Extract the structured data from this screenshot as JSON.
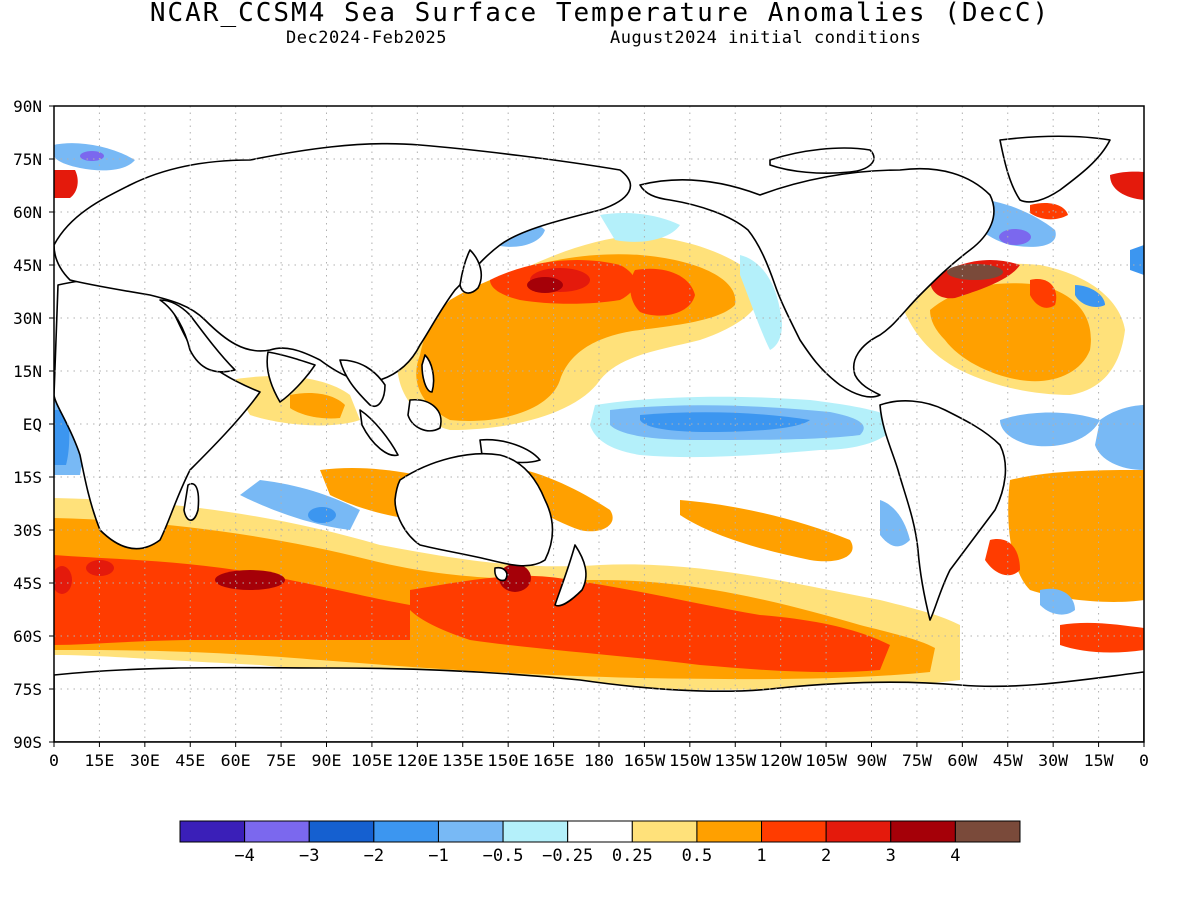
{
  "header": {
    "title": "NCAR_CCSM4 Sea Surface Temperature Anomalies (DecC)",
    "period": "Dec2024-Feb2025",
    "init": "August2024 initial conditions"
  },
  "map_data": {
    "variable": "Sea Surface Temperature Anomalies",
    "units": "°C",
    "lat_ticks": [
      "90N",
      "75N",
      "60N",
      "45N",
      "30N",
      "15N",
      "EQ",
      "15S",
      "30S",
      "45S",
      "60S",
      "75S",
      "90S"
    ],
    "lon_ticks": [
      "0",
      "15E",
      "30E",
      "45E",
      "60E",
      "75E",
      "90E",
      "105E",
      "120E",
      "135E",
      "150E",
      "165E",
      "180",
      "165W",
      "150W",
      "135W",
      "120W",
      "105W",
      "90W",
      "75W",
      "60W",
      "45W",
      "30W",
      "15W",
      "0"
    ],
    "grid": true,
    "colors": {
      "land_outline": "#000000",
      "frame": "#000000",
      "grid_dots": "#b0b0b0"
    },
    "colorbar": {
      "colors": [
        "#3a1fb8",
        "#7b68ee",
        "#1560d0",
        "#3c96f0",
        "#78b9f5",
        "#b4f0fa",
        "#ffffff",
        "#ffe17a",
        "#ffa000",
        "#ff3c00",
        "#e41a0c",
        "#a50008",
        "#7a4a3a"
      ],
      "labels": [
        "-4",
        "-3",
        "-2",
        "-1",
        "-0.5",
        "-0.25",
        "0.25",
        "0.5",
        "1",
        "2",
        "3",
        "4"
      ]
    }
  }
}
